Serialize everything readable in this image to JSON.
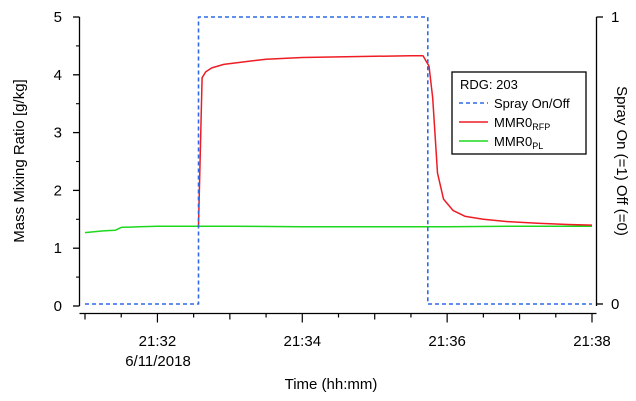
{
  "chart_data": {
    "type": "line",
    "title": "",
    "xlabel": "Time (hh:mm)",
    "ylabel_left": "Mass Mixing Ratio [g/kg]",
    "ylabel_right": "Spray On (=1) Off (=0)",
    "date_label": "6/11/2018",
    "x_ticks": [
      "21:32",
      "21:34",
      "21:36",
      "21:38"
    ],
    "x_range": [
      "21:31:00",
      "21:38:00"
    ],
    "y_left_ticks": [
      0,
      1,
      2,
      3,
      4,
      5
    ],
    "y_left_range": [
      0,
      5
    ],
    "y_right_ticks": [
      0,
      1
    ],
    "y_right_range": [
      -0.007,
      1
    ],
    "grid": false,
    "legend": {
      "placement": "right",
      "title": "RDG: 203",
      "entries": [
        {
          "name": "Spray On/Off",
          "style": "dashed",
          "color": "#2e6ae6"
        },
        {
          "name": "MMR0",
          "subscript": "RFP",
          "style": "solid",
          "color": "#ee1c25"
        },
        {
          "name": "MMR0",
          "subscript": "PL",
          "style": "solid",
          "color": "#1ed81e"
        }
      ]
    },
    "series": [
      {
        "name": "Spray On/Off",
        "axis": "right",
        "color": "#2e6ae6",
        "style": "dashed",
        "x": [
          "21:31:00",
          "21:32:34",
          "21:32:34",
          "21:35:44",
          "21:35:44",
          "21:38:00"
        ],
        "values": [
          0,
          0,
          1,
          1,
          0,
          0
        ]
      },
      {
        "name": "MMR0 RFP",
        "axis": "left",
        "color": "#ee1c25",
        "x": [
          "21:32:34",
          "21:32:37",
          "21:32:40",
          "21:32:45",
          "21:32:55",
          "21:33:10",
          "21:33:30",
          "21:34:00",
          "21:34:30",
          "21:35:00",
          "21:35:30",
          "21:35:40",
          "21:35:45",
          "21:35:48",
          "21:35:52",
          "21:35:57",
          "21:36:05",
          "21:36:15",
          "21:36:30",
          "21:36:50",
          "21:37:15",
          "21:37:40",
          "21:38:00"
        ],
        "values": [
          1.38,
          3.95,
          4.05,
          4.12,
          4.18,
          4.22,
          4.27,
          4.3,
          4.31,
          4.32,
          4.33,
          4.33,
          4.15,
          3.6,
          2.3,
          1.85,
          1.65,
          1.55,
          1.5,
          1.46,
          1.43,
          1.41,
          1.4
        ]
      },
      {
        "name": "MMR0 PL",
        "axis": "left",
        "color": "#1ed81e",
        "x": [
          "21:31:00",
          "21:31:15",
          "21:31:25",
          "21:31:30",
          "21:31:45",
          "21:32:00",
          "21:32:30",
          "21:33:00",
          "21:34:00",
          "21:35:00",
          "21:36:00",
          "21:37:00",
          "21:38:00"
        ],
        "values": [
          1.27,
          1.3,
          1.31,
          1.36,
          1.37,
          1.38,
          1.38,
          1.38,
          1.37,
          1.37,
          1.37,
          1.38,
          1.38
        ]
      }
    ]
  }
}
